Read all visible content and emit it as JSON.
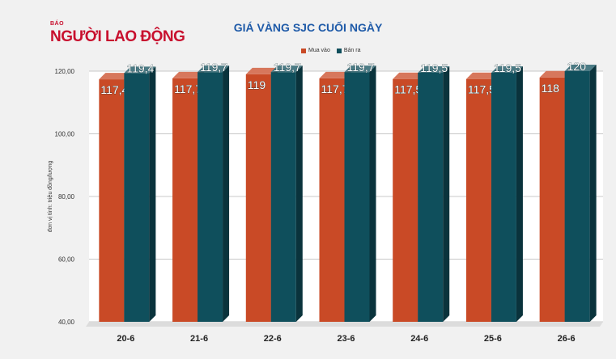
{
  "logo": {
    "small": "BÁO",
    "main": "NGƯỜI LAO ĐỘNG"
  },
  "chart_data": {
    "type": "bar",
    "title": "GIÁ VÀNG SJC CUỐI NGÀY",
    "ylabel": "đơn vị tính: triệu đồng/lượng",
    "xlabel": "",
    "categories": [
      "20-6",
      "21-6",
      "22-6",
      "23-6",
      "24-6",
      "25-6",
      "26-6"
    ],
    "series": [
      {
        "name": "Mua vào",
        "values": [
          117.4,
          117.7,
          119,
          117.7,
          117.5,
          117.5,
          118
        ],
        "labels": [
          "117,4",
          "117,7",
          "119",
          "117,7",
          "117,5",
          "117,5",
          "118"
        ],
        "color": "#c94a26"
      },
      {
        "name": "Bán ra",
        "values": [
          119.4,
          119.7,
          119.7,
          119.7,
          119.5,
          119.5,
          120
        ],
        "labels": [
          "119,4",
          "119,7",
          "119,7",
          "119,7",
          "119,5",
          "119,5",
          "120"
        ],
        "color": "#0f4f5c"
      }
    ],
    "ylim": [
      40,
      120
    ],
    "yticks": [
      "40,00",
      "60,00",
      "80,00",
      "100,00",
      "120,00"
    ],
    "grid": true,
    "legend": "top-center"
  }
}
